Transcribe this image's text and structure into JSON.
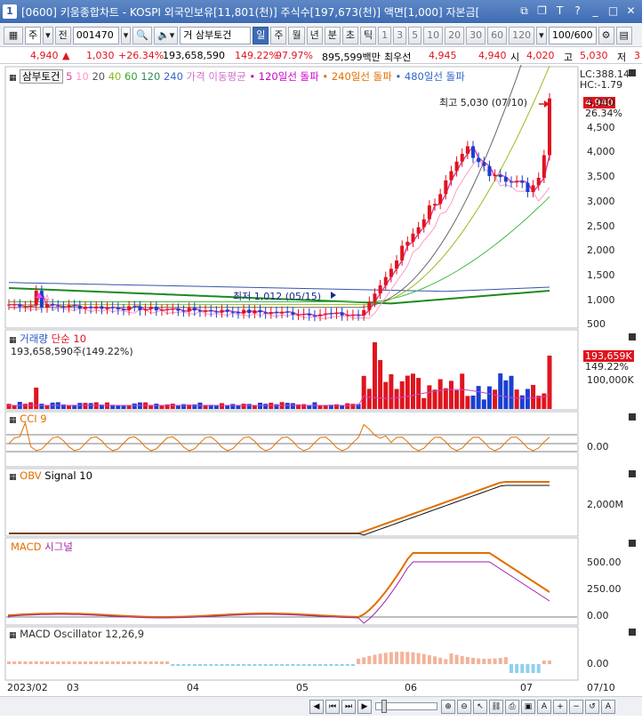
{
  "window": {
    "title": "[0600] 키움종합차트 - KOSPI 외국인보유[11,801(천)] 주식수[197,673(천)] 액면[1,000] 자본금[",
    "icon": "1"
  },
  "toolbar": {
    "market": "주",
    "prev": "전",
    "code": "001470",
    "name": "삼부토건",
    "name_prefix": "거",
    "periods": [
      "일",
      "주",
      "월",
      "년",
      "분",
      "초",
      "틱"
    ],
    "active_period": "일",
    "intervals": [
      "1",
      "3",
      "5",
      "10",
      "20",
      "30",
      "60",
      "120"
    ],
    "count": "100/600"
  },
  "quote": {
    "price": "4,940",
    "arrow": "▲",
    "change": "1,030",
    "change_pct": "+26.34%",
    "volume": "193,658,590",
    "volume_pct": "149.22%",
    "strength": "97.97%",
    "amount": "895,599백만",
    "best_ask_label": "최우선",
    "best_ask": "4,945",
    "best_bid": "4,940",
    "open_label": "시",
    "open": "4,020",
    "high_label": "고",
    "high": "5,030",
    "low_label": "저",
    "low_cut": "3"
  },
  "price_panel": {
    "legend_name": "삼부토건",
    "ma_labels": [
      "5",
      "10",
      "20",
      "40",
      "60",
      "120",
      "240"
    ],
    "ma_colors": [
      "#e040a0",
      "#ff9ac8",
      "#555555",
      "#44bb44",
      "#999900",
      "#2fa32f",
      "#3366cc"
    ],
    "legend_price_ma": "가격 이동평균",
    "legend_120": "120일선 돌파",
    "legend_240": "240일선 돌파",
    "legend_480": "480일선 돌파",
    "lc": "LC:388.14",
    "hc": "HC:-1.79",
    "current_price_tag": "4,940",
    "current_pct_tag": "26.34%",
    "high_note": "최고 5,030 (07/10)",
    "low_note": "최저 1,012 (05/15)",
    "y_ticks": [
      "5,000",
      "4,500",
      "4,000",
      "3,500",
      "3,000",
      "2,500",
      "2,000",
      "1,500",
      "1,000",
      "500"
    ]
  },
  "volume_panel": {
    "legend_name": "거래량",
    "legend_ma": "단순 10",
    "info": "193,658,590주(149.22%)",
    "tag_value": "193,659K",
    "tag_pct": "149.22%",
    "y_tick": "100,000K"
  },
  "cci_panel": {
    "legend": "CCI 9",
    "y_tick": "0.00"
  },
  "obv_panel": {
    "legend": "OBV",
    "legend_signal": "Signal 10",
    "y_tick": "2,000M"
  },
  "macd_panel": {
    "legend": "MACD",
    "legend_signal": "시그널",
    "y_ticks": [
      "500.00",
      "250.00",
      "0.00"
    ]
  },
  "osc_panel": {
    "legend": "MACD Oscillator 12,26,9",
    "y_tick": "0.00"
  },
  "x_axis": {
    "labels": [
      "2023/02",
      "03",
      "04",
      "05",
      "06",
      "07"
    ],
    "right_label": "07/10"
  },
  "colors": {
    "up": "#e0141e",
    "down": "#1a3fd0",
    "accent": "#3d6bb3"
  }
}
